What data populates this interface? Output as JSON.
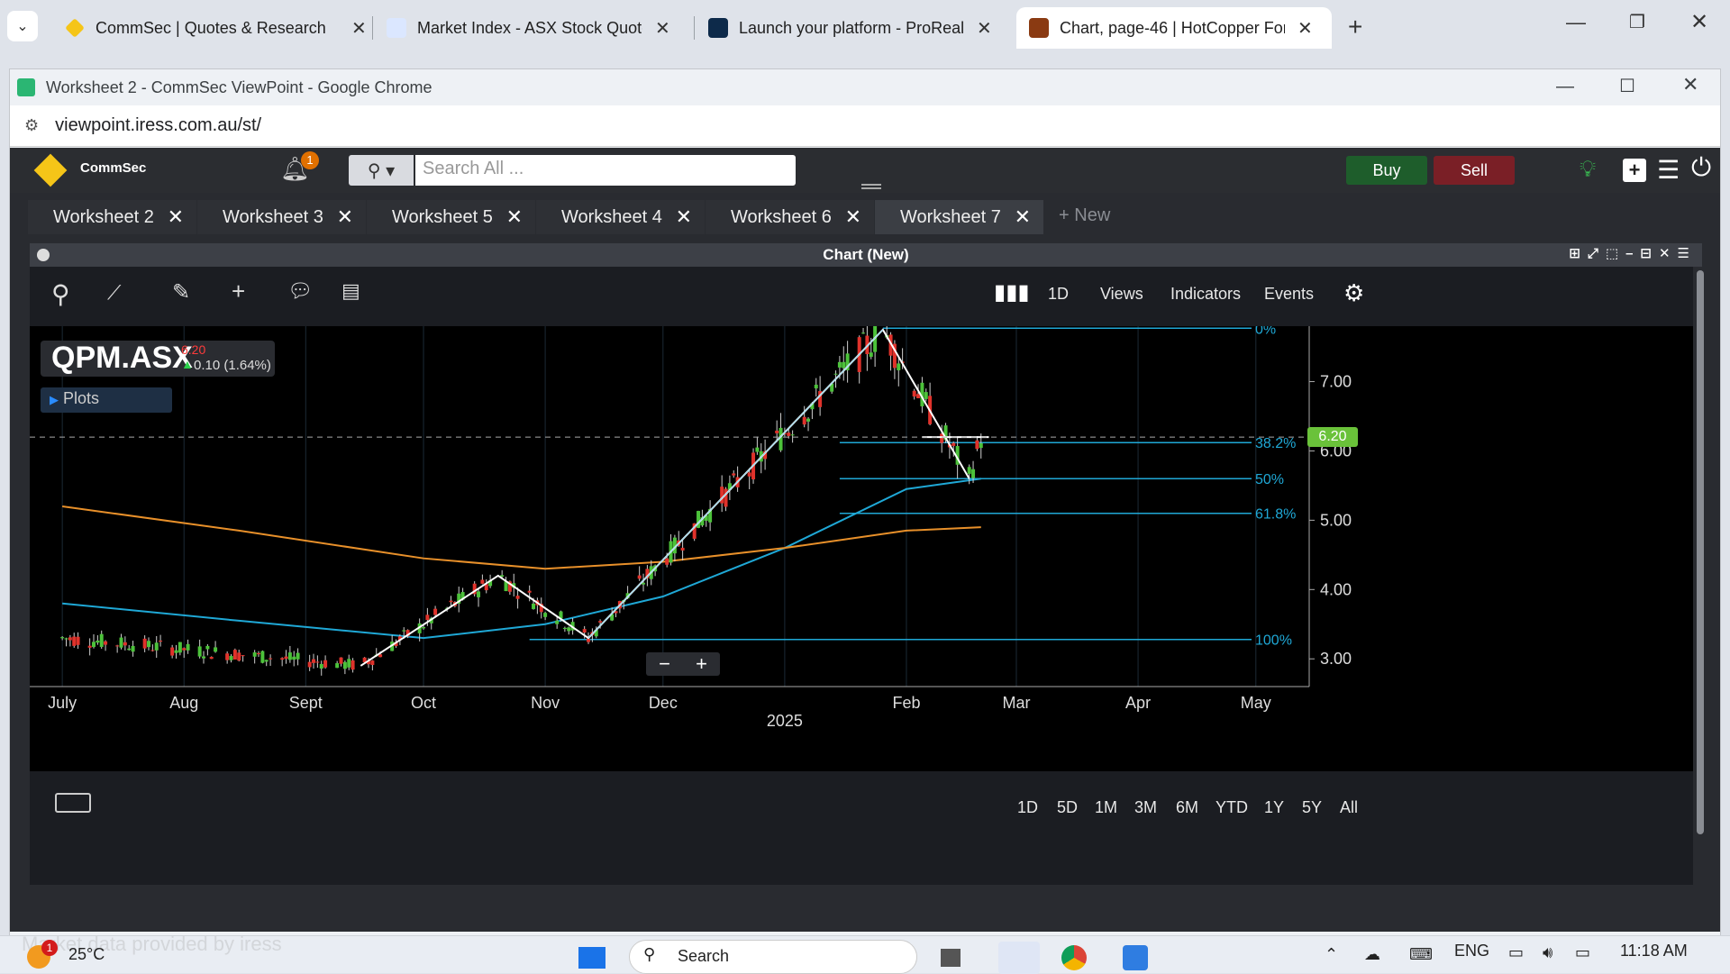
{
  "browser_tabs": [
    {
      "title": "CommSec | Quotes & Research",
      "icon": "commsec-icon",
      "active": false
    },
    {
      "title": "Market Index - ASX Stock Quote",
      "icon": "marketindex-icon",
      "active": false
    },
    {
      "title": "Launch your platform - ProReal",
      "icon": "prorealtime-icon",
      "active": false
    },
    {
      "title": "Chart, page-46 | HotCopper For",
      "icon": "hotcopper-icon",
      "active": true
    }
  ],
  "window": {
    "title": "Worksheet 2 - CommSec ViewPoint - Google Chrome",
    "url": "viewpoint.iress.com.au/st/"
  },
  "app": {
    "brand": "CommSec",
    "notification_count": "1",
    "search_placeholder": "Search All ...",
    "buy_label": "Buy",
    "sell_label": "Sell",
    "worksheet_tabs": [
      "Worksheet 2",
      "Worksheet 3",
      "Worksheet 5",
      "Worksheet 4",
      "Worksheet 6",
      "Worksheet 7"
    ],
    "active_worksheet": "Worksheet 7",
    "new_tab_label": "New",
    "panel_title": "Chart (New)",
    "toolbar": {
      "interval": "1D",
      "views": "Views",
      "indicators": "Indicators",
      "events": "Events"
    },
    "plots_label": "Plots",
    "ranges": [
      "1D",
      "5D",
      "1M",
      "3M",
      "6M",
      "YTD",
      "1Y",
      "5Y",
      "All"
    ],
    "footer_watermark": "Market data provided by iress"
  },
  "chart_data": {
    "type": "candlestick",
    "symbol": "QPM.ASX",
    "last_price": "6.20",
    "change": "0.10 (1.64%)",
    "price_tag": "6.20",
    "x_tick_labels": [
      "July",
      "Aug",
      "Sept",
      "Oct",
      "Nov",
      "Dec",
      "Feb",
      "Mar",
      "Apr",
      "May"
    ],
    "x_year_label": "2025",
    "y_tick_labels": [
      "3.00",
      "4.00",
      "5.00",
      "6.00",
      "7.00"
    ],
    "ylim": [
      2.6,
      7.8
    ],
    "fibonacci": [
      {
        "label": "0%",
        "price": 7.77
      },
      {
        "label": "38.2%",
        "price": 6.12
      },
      {
        "label": "50%",
        "price": 5.6
      },
      {
        "label": "61.8%",
        "price": 5.1
      },
      {
        "label": "100%",
        "price": 3.28
      }
    ],
    "series": [
      {
        "name": "price",
        "x": [
          "2024-07-01",
          "2024-09-15",
          "2024-10-20",
          "2024-11-12",
          "2025-01-26",
          "2025-02-17",
          "2025-02-20"
        ],
        "y": [
          3.3,
          2.9,
          4.2,
          3.3,
          7.75,
          5.6,
          6.2
        ]
      }
    ],
    "moving_averages": [
      {
        "color": "#1fa8d6",
        "x": [
          "2024-07-01",
          "2024-08-15",
          "2024-10-01",
          "2024-11-01",
          "2024-12-01",
          "2025-01-01",
          "2025-02-01",
          "2025-02-20"
        ],
        "y": [
          3.8,
          3.55,
          3.3,
          3.5,
          3.9,
          4.6,
          5.45,
          5.6
        ]
      },
      {
        "color": "#e8902a",
        "x": [
          "2024-07-01",
          "2024-08-15",
          "2024-10-01",
          "2024-11-01",
          "2024-12-01",
          "2025-01-01",
          "2025-02-01",
          "2025-02-20"
        ],
        "y": [
          5.2,
          4.85,
          4.45,
          4.3,
          4.4,
          4.6,
          4.85,
          4.9
        ]
      }
    ]
  },
  "taskbar": {
    "temperature": "25°C",
    "weather_badge": "1",
    "search_label": "Search",
    "language": "ENG",
    "time": "11:18 AM"
  }
}
